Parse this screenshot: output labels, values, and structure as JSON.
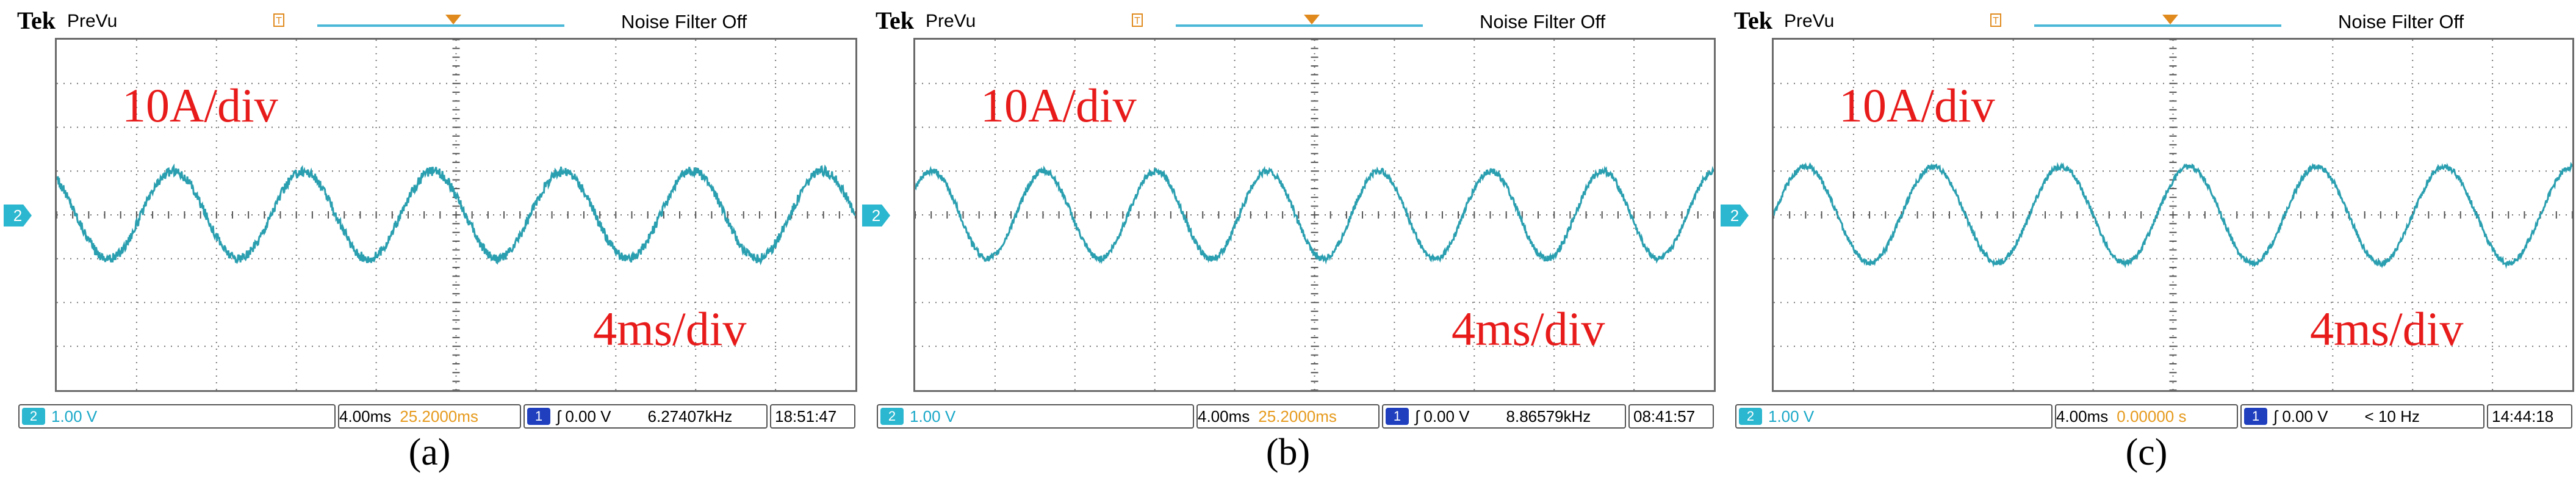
{
  "colors": {
    "trace": "#2a9fb0",
    "trace_dark": "#0f5d66",
    "label": "#e81b1b",
    "channel": "#2bb7cf",
    "record": "#4bb8d8",
    "trigger": "#e08a1e"
  },
  "chart_data": [
    {
      "type": "line",
      "title": "Tek PreVu",
      "caption": "(a)",
      "brand": "Tek",
      "mode": "PreVu",
      "noise_filter": "Noise Filter Off",
      "trigger_marker": "T",
      "channel_marker": "2",
      "vertical_scale_label": "10A/div",
      "time_scale_label": "4ms/div",
      "grid": {
        "divisions_x": 10,
        "divisions_y": 8,
        "minor_ticks": 5
      },
      "ylim": [
        -40,
        40
      ],
      "xlim": [
        0,
        40
      ],
      "series": [
        {
          "name": "Ch2 current",
          "amplitude_A": 10,
          "offset_A": 0,
          "period_ms": 6.5,
          "phase": 0.35,
          "noise_A": 1.1
        }
      ],
      "bottom_bar": {
        "channel": "2",
        "volts": "1.00 V",
        "timebase": "4.00ms",
        "position": "25.2000ms",
        "trig_channel": "1",
        "trig_level": "0.00 V",
        "frequency": "6.27407kHz",
        "time": "18:51:47"
      }
    },
    {
      "type": "line",
      "title": "Tek PreVu",
      "caption": "(b)",
      "brand": "Tek",
      "mode": "PreVu",
      "noise_filter": "Noise Filter Off",
      "trigger_marker": "T",
      "channel_marker": "2",
      "vertical_scale_label": "10A/div",
      "time_scale_label": "4ms/div",
      "grid": {
        "divisions_x": 10,
        "divisions_y": 8,
        "minor_ticks": 5
      },
      "ylim": [
        -40,
        40
      ],
      "xlim": [
        0,
        40
      ],
      "series": [
        {
          "name": "Ch2 current",
          "amplitude_A": 10,
          "offset_A": 0,
          "period_ms": 5.6,
          "phase": 0.1,
          "noise_A": 0.7
        }
      ],
      "bottom_bar": {
        "channel": "2",
        "volts": "1.00 V",
        "timebase": "4.00ms",
        "position": "25.2000ms",
        "trig_channel": "1",
        "trig_level": "0.00 V",
        "frequency": "8.86579kHz",
        "time": "08:41:57"
      }
    },
    {
      "type": "line",
      "title": "Tek PreVu",
      "caption": "(c)",
      "brand": "Tek",
      "mode": "PreVu",
      "noise_filter": "Noise Filter Off",
      "trigger_marker": "T",
      "channel_marker": "2",
      "vertical_scale_label": "10A/div",
      "time_scale_label": "4ms/div",
      "grid": {
        "divisions_x": 10,
        "divisions_y": 8,
        "minor_ticks": 5
      },
      "ylim": [
        -40,
        40
      ],
      "xlim": [
        0,
        40
      ],
      "series": [
        {
          "name": "Ch2 current",
          "amplitude_A": 11,
          "offset_A": 0,
          "period_ms": 6.4,
          "phase": 0.0,
          "noise_A": 0.6
        }
      ],
      "bottom_bar": {
        "channel": "2",
        "volts": "1.00 V",
        "timebase": "4.00ms",
        "position": "0.00000 s",
        "trig_channel": "1",
        "trig_level": "0.00 V",
        "frequency": "< 10 Hz",
        "time": "14:44:18"
      }
    }
  ]
}
